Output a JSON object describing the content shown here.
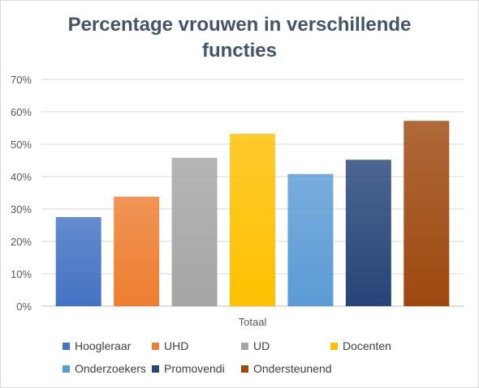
{
  "chart_data": {
    "type": "bar",
    "title_lines": [
      "Percentage vrouwen in verschillende",
      "functies"
    ],
    "categories": [
      "Totaal"
    ],
    "series": [
      {
        "name": "Hoogleraar",
        "values": [
          27.5
        ],
        "color": "#4472c4"
      },
      {
        "name": "UHD",
        "values": [
          33.8
        ],
        "color": "#ed7d31"
      },
      {
        "name": "UD",
        "values": [
          45.8
        ],
        "color": "#a5a5a5"
      },
      {
        "name": "Docenten",
        "values": [
          53.2
        ],
        "color": "#ffc000"
      },
      {
        "name": "Onderzoekers",
        "values": [
          40.8
        ],
        "color": "#5b9bd5"
      },
      {
        "name": "Promovendi",
        "values": [
          45.2
        ],
        "color": "#264478"
      },
      {
        "name": "Ondersteunend",
        "values": [
          57.2
        ],
        "color": "#9e480e"
      }
    ],
    "ylim": [
      0,
      70
    ],
    "yticks": [
      "0%",
      "10%",
      "20%",
      "30%",
      "40%",
      "50%",
      "60%",
      "70%"
    ],
    "grid": true,
    "legend_position": "bottom"
  }
}
